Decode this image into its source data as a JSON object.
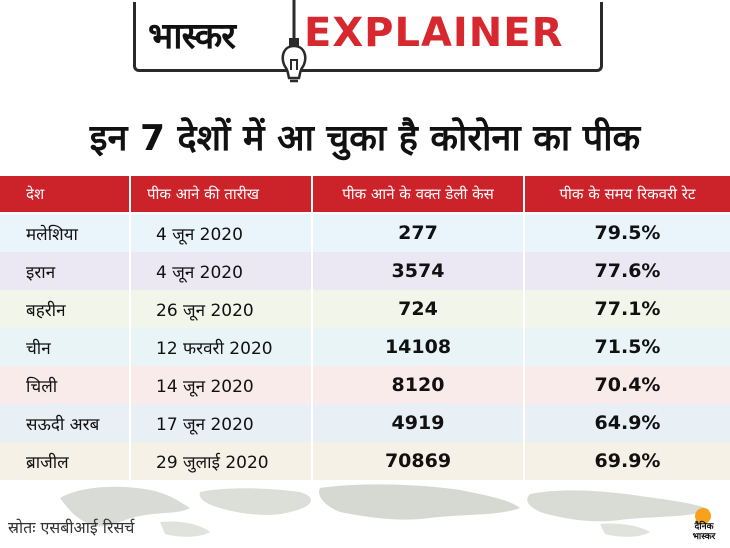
{
  "header": {
    "brand": "भास्कर",
    "section": "EXPLAINER",
    "brand_color": "#111111",
    "section_color": "#d7282f",
    "bulb_icon": "light-bulb-icon"
  },
  "headline": "इन 7 देशों में आ चुका है कोरोना का पीक",
  "table": {
    "header_bg": "#cc2229",
    "columns": [
      "देश",
      "पीक आने की तारीख",
      "पीक आने के वक्त डेली केस",
      "पीक के समय रिकवरी रेट"
    ],
    "rows": [
      {
        "country": "मलेशिया",
        "date": "4 जून 2020",
        "cases": "277",
        "rate": "79.5%",
        "bg": "#eaf4fb"
      },
      {
        "country": "इरान",
        "date": "4 जून 2020",
        "cases": "3574",
        "rate": "77.6%",
        "bg": "#ebe7f3"
      },
      {
        "country": "बहरीन",
        "date": "26 जून 2020",
        "cases": "724",
        "rate": "77.1%",
        "bg": "#f2f5ea"
      },
      {
        "country": "चीन",
        "date": "12 फरवरी 2020",
        "cases": "14108",
        "rate": "71.5%",
        "bg": "#e9f4f7"
      },
      {
        "country": "चिली",
        "date": "14 जून 2020",
        "cases": "8120",
        "rate": "70.4%",
        "bg": "#f9ebea"
      },
      {
        "country": "सऊदी अरब",
        "date": "17 जून 2020",
        "cases": "4919",
        "rate": "64.9%",
        "bg": "#e8f0f6"
      },
      {
        "country": "ब्राजील",
        "date": "29 जुलाई 2020",
        "cases": "70869",
        "rate": "69.9%",
        "bg": "#f5f1e6"
      }
    ]
  },
  "footer": {
    "source": "स्रोतः एसबीआई रिसर्च",
    "logo_line1": "दैनिक",
    "logo_line2": "भास्कर",
    "logo_color": "#f7a21b",
    "map_icon": "world-map-icon"
  }
}
